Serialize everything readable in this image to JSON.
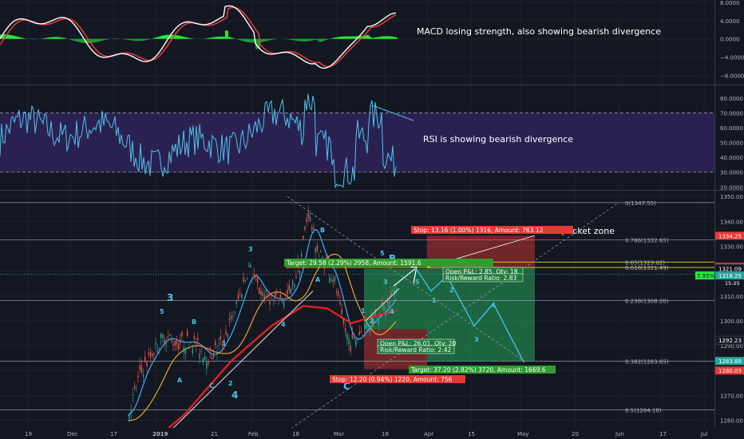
{
  "chart_data": [
    {
      "type": "line",
      "panel": "MACD",
      "ylim": [
        -10,
        8.5
      ],
      "y_ticks": [
        "8.0000",
        "4.0000",
        "0.0000",
        "−4.0000",
        "−8.0000"
      ],
      "y_tick_values": [
        8,
        4,
        0,
        -4,
        -8
      ],
      "series": [],
      "annotations": [
        {
          "text": "MACD losing strength, also showing bearish divergence"
        }
      ],
      "colors": {
        "macd": "#ffffff",
        "signal": "#e53935",
        "histogram_pos": "#26e73b",
        "histogram_neg": "#1b9d2b"
      }
    },
    {
      "type": "line",
      "panel": "RSI",
      "ylim": [
        18,
        88
      ],
      "y_ticks": [
        "80.0000",
        "70.0000",
        "60.0000",
        "50.0000",
        "40.0000",
        "30.0000",
        "20.0000"
      ],
      "y_tick_values": [
        80,
        70,
        60,
        50,
        40,
        30,
        20
      ],
      "bands": [
        30,
        70
      ],
      "annotations": [
        {
          "text": "RSI is showing bearish divergence"
        }
      ],
      "colors": {
        "rsi": "#4dc3ea",
        "band_fill": "#2b2151"
      }
    },
    {
      "type": "candlestick",
      "panel": "price",
      "ylim": [
        1257,
        1352
      ],
      "y_ticks": [
        "1350.00",
        "1340.00",
        "1330.00",
        "1320.00",
        "1310.00",
        "1300.00",
        "1290.00",
        "1280.00",
        "1270.00",
        "1260.00"
      ],
      "y_tick_values": [
        1350,
        1340,
        1330,
        1320,
        1310,
        1300,
        1290,
        1280,
        1270,
        1260
      ],
      "x_ticks": [
        "19",
        "Dec",
        "17",
        "2019",
        "21",
        "Feb",
        "18",
        "Mar",
        "18",
        "Apr",
        "15",
        "May",
        "20",
        "Jun",
        "17",
        "Jul"
      ],
      "fib_levels": [
        {
          "label": "0(1347.55)",
          "value": 1347.55
        },
        {
          "label": "0.786(1332.65)",
          "value": 1332.65
        },
        {
          "label": "0.65(1323.62)",
          "value": 1323.62
        },
        {
          "label": "0.618(1321.49)",
          "value": 1321.49
        },
        {
          "label": "0.236(1308.20)",
          "value": 1308.2
        },
        {
          "label": "0.382(1283.85)",
          "value": 1283.85
        },
        {
          "label": "0.5(1264.18)",
          "value": 1264.18
        }
      ],
      "price_tags": [
        {
          "text": "1334.25",
          "value": 1334.25,
          "color": "#e53935"
        },
        {
          "text": "1321.81",
          "value": 1321.81,
          "color": "#e53935"
        },
        {
          "text": "1321.09",
          "value": 1321.09,
          "color": "#131722"
        },
        {
          "text": "1318.25",
          "value": 1318.25,
          "color": "#26a69a"
        },
        {
          "text": "1292.23",
          "value": 1292.23,
          "color": "#131722"
        },
        {
          "text": "1283.89",
          "value": 1283.89,
          "color": "#26a69a"
        },
        {
          "text": "1280.03",
          "value": 1280.03,
          "color": "#e53935"
        }
      ],
      "price_tag_extra": {
        "percent_badge": "7.95%",
        "countdown": "15:25"
      },
      "axis_extra_labels": [
        "1290",
        "1300.",
        "1340.",
        "1330.",
        "1270.",
        "1260."
      ],
      "wave_labels": [
        "3",
        "5",
        "B",
        "1",
        "A",
        "C",
        "2",
        "4",
        "3",
        "4",
        "B",
        "A",
        "5",
        "B",
        "1",
        "2",
        "3",
        "4",
        "1",
        "2",
        "3",
        "4",
        "5",
        "C"
      ],
      "partial_texts": [
        "n pocket zone"
      ],
      "position_labels": [
        {
          "text": "Stop: 13.16 (1.00%) 1316, Amount: 763.12",
          "kind": "stop"
        },
        {
          "text": "Target: 29.58 (2.29%) 2958, Amount: 1591.6",
          "kind": "target"
        },
        {
          "text": "Open P&L: 2.85, Qty: 18",
          "kind": "info"
        },
        {
          "text": "Risk/Reward Ratio: 2.83",
          "kind": "info"
        },
        {
          "text": "Open P&L: 26.01, Qty: 20",
          "kind": "info"
        },
        {
          "text": "Risk/Reward Ratio: 2.42",
          "kind": "info"
        },
        {
          "text": "Target: 37.20 (2.82%) 3720, Amount: 1669.6",
          "kind": "target"
        },
        {
          "text": "Stop: 12.20 (0.94%) 1220, Amount: 756",
          "kind": "stop"
        }
      ],
      "colors": {
        "up": "#26a69a",
        "down": "#ef5350",
        "ma_fast": "#4aa8ff",
        "ma_mid": "#f0a030",
        "ma_slow": "#e02020",
        "projection": "#4dc3ea"
      }
    }
  ]
}
